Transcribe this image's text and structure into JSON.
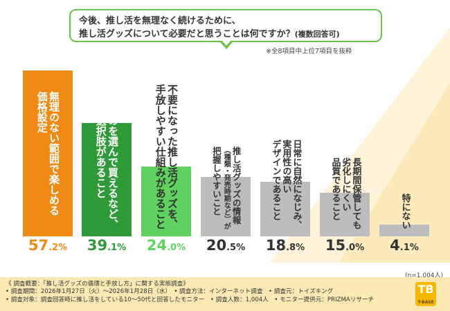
{
  "question": {
    "line1": "今後、推し活を無理なく続けるために、",
    "line2_main": "推し活グッズについて必要だと思うことは何ですか？",
    "line2_note": "(複数回答可)"
  },
  "note_top": "※全8項目中上位7項目を抜粋",
  "colors": {
    "bar1": "#ef8a14",
    "bar2": "#2f9a3a",
    "bar3": "#5fd25f",
    "gray": "#bdbdbd",
    "label_dark": "#333333"
  },
  "chart_data": {
    "type": "bar",
    "title": "",
    "xlabel": "",
    "ylabel": "",
    "ylim": [
      0,
      60
    ],
    "categories": [
      "無理のない範囲で楽しめる価格設定",
      "欲しいものを選んで買えるなど、買い方の選択肢があること",
      "不要になった推し活グッズを、手放しやすい仕組みがあること",
      "推し活グッズの情報（種類・発売時期など）が把握しやすいこと",
      "日常に自然になじみ、実用性の高いデザインであること",
      "長期間保管しても劣化しにくい品質であること",
      "特にない"
    ],
    "values": [
      57.2,
      39.1,
      24.0,
      20.5,
      18.8,
      15.0,
      4.1
    ],
    "value_labels": [
      {
        "big": "57",
        "small": ".2%"
      },
      {
        "big": "39",
        "small": ".1%"
      },
      {
        "big": "24",
        "small": ".0%"
      },
      {
        "big": "20",
        "small": ".5%"
      },
      {
        "big": "18",
        "small": ".8%"
      },
      {
        "big": "15",
        "small": ".0%"
      },
      {
        "big": "4",
        "small": ".1%"
      }
    ],
    "label_lines": [
      [
        "無理のない範囲で楽しめる",
        "価格設定"
      ],
      [
        "欲しいものを選んで買えるなど、",
        "買い方の選択肢があること"
      ],
      [
        "不要になった推し活グッズを、",
        "手放しやすい仕組みがあること"
      ],
      [
        "推し活グッズの情報",
        "（種類・発売時期など）が",
        "把握しやすいこと"
      ],
      [
        "日常に自然になじみ、",
        "実用性の高い",
        "デザインであること"
      ],
      [
        "長期間保管しても",
        "劣化しにくい",
        "品質であること"
      ],
      [
        "特にない"
      ]
    ]
  },
  "sample_size": "(n=1,004人)",
  "footer": {
    "line1": "《 調査概要：「推し活グッズの循環と手放し方」に関する実態調査》",
    "line2": "• 調査期間：2026年1月27日（火）～2026年1月28日（水）　• 調査方法：インターネット調査　• 調査元：トイズキング",
    "line3": "• 調査対象：調査回答時に推し活をしている10～50代と回答したモニター　• 調査人数：1,004人　• モニター提供元：PRIZMAリサーチ"
  },
  "logo": {
    "mark": "TB",
    "text": "T-BASE"
  }
}
